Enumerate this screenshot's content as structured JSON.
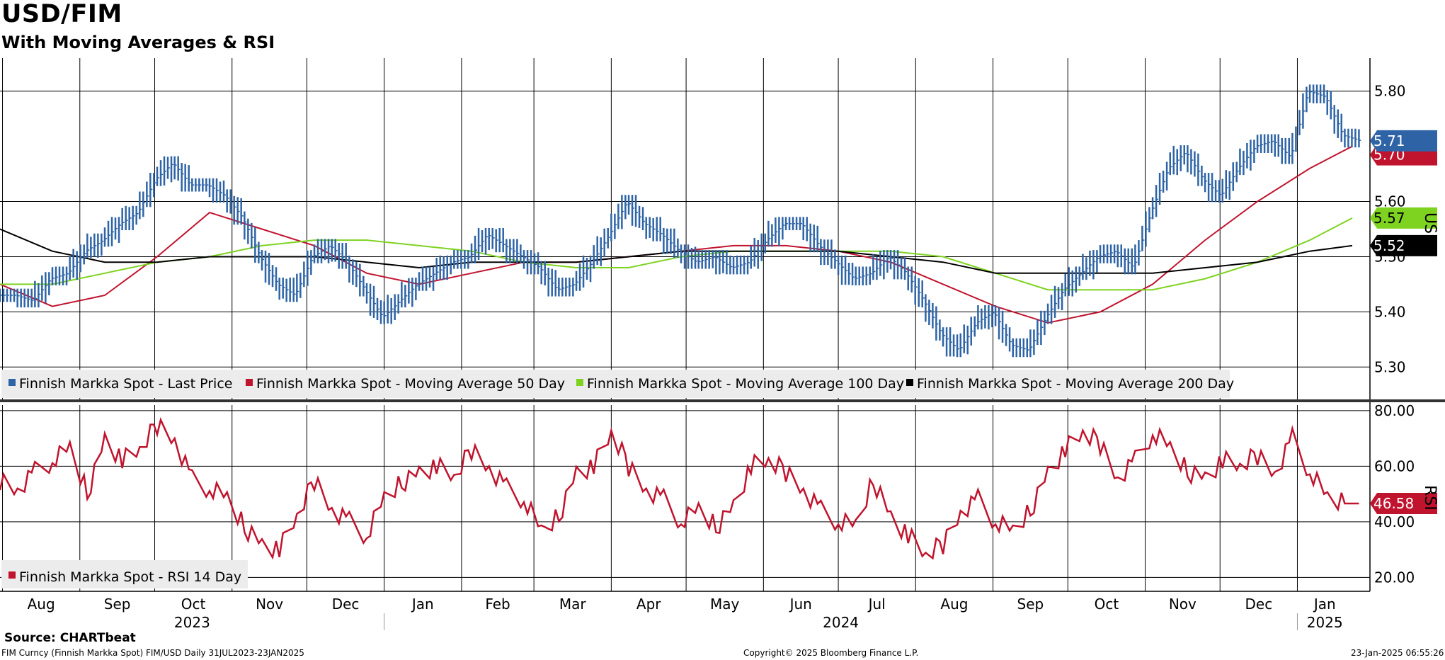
{
  "header": {
    "title": "USD/FIM",
    "subtitle": "With Moving Averages & RSI"
  },
  "footer": {
    "source": "Source: CHARTbeat",
    "meta": "FIM Curncy (Finnish Markka Spot) FIM/USD  Daily 31JUL2023-23JAN2025",
    "copyright": "Copyright© 2025 Bloomberg Finance L.P.",
    "timestamp": "23-Jan-2025 06:55:26"
  },
  "colors": {
    "price": "#2e64a6",
    "ma50": "#c0142e",
    "ma100": "#7ed321",
    "ma200": "#000000",
    "rsi": "#c0142e",
    "grid": "#000000"
  },
  "chart_data": [
    {
      "type": "line",
      "panel": "price",
      "ylabel": "USD",
      "ylim": [
        5.24,
        5.86
      ],
      "yticks": [
        "5.30",
        "5.40",
        "5.50",
        "5.60",
        "5.80"
      ],
      "grid": true,
      "legend": "bottom",
      "x_range": [
        "2023-07-31",
        "2025-01-23"
      ],
      "months": [
        "Aug",
        "Sep",
        "Oct",
        "Nov",
        "Dec",
        "Jan",
        "Feb",
        "Mar",
        "Apr",
        "May",
        "Jun",
        "Jul",
        "Aug",
        "Sep",
        "Oct",
        "Nov",
        "Dec",
        "Jan"
      ],
      "years": [
        "2023",
        "2024",
        "2025"
      ],
      "last_values": {
        "price": "5.71",
        "ma50": "5.70",
        "ma100": "5.57",
        "ma200": "5.52"
      },
      "series": [
        {
          "name": "Finnish Markka Spot - Last Price",
          "x": [
            "2023-07-31",
            "2023-08-07",
            "2023-08-14",
            "2023-08-21",
            "2023-08-28",
            "2023-09-04",
            "2023-09-11",
            "2023-09-18",
            "2023-09-25",
            "2023-10-02",
            "2023-10-09",
            "2023-10-16",
            "2023-10-23",
            "2023-10-30",
            "2023-11-06",
            "2023-11-13",
            "2023-11-20",
            "2023-11-27",
            "2023-12-04",
            "2023-12-11",
            "2023-12-18",
            "2023-12-25",
            "2024-01-01",
            "2024-01-08",
            "2024-01-15",
            "2024-01-22",
            "2024-01-29",
            "2024-02-05",
            "2024-02-12",
            "2024-02-19",
            "2024-02-26",
            "2024-03-04",
            "2024-03-11",
            "2024-03-18",
            "2024-03-25",
            "2024-04-01",
            "2024-04-08",
            "2024-04-15",
            "2024-04-22",
            "2024-04-29",
            "2024-05-06",
            "2024-05-13",
            "2024-05-20",
            "2024-05-27",
            "2024-06-03",
            "2024-06-10",
            "2024-06-17",
            "2024-06-24",
            "2024-07-01",
            "2024-07-08",
            "2024-07-15",
            "2024-07-22",
            "2024-07-29",
            "2024-08-05",
            "2024-08-12",
            "2024-08-19",
            "2024-08-26",
            "2024-09-02",
            "2024-09-09",
            "2024-09-16",
            "2024-09-23",
            "2024-09-30",
            "2024-10-07",
            "2024-10-14",
            "2024-10-21",
            "2024-10-28",
            "2024-11-04",
            "2024-11-11",
            "2024-11-18",
            "2024-11-25",
            "2024-12-02",
            "2024-12-09",
            "2024-12-16",
            "2024-12-23",
            "2024-12-30",
            "2025-01-06",
            "2025-01-13",
            "2025-01-20"
          ],
          "values": [
            5.43,
            5.42,
            5.46,
            5.47,
            5.51,
            5.53,
            5.56,
            5.58,
            5.64,
            5.67,
            5.63,
            5.63,
            5.61,
            5.57,
            5.5,
            5.45,
            5.43,
            5.5,
            5.52,
            5.49,
            5.44,
            5.39,
            5.42,
            5.45,
            5.47,
            5.49,
            5.5,
            5.54,
            5.52,
            5.5,
            5.48,
            5.44,
            5.45,
            5.49,
            5.54,
            5.6,
            5.56,
            5.54,
            5.51,
            5.49,
            5.5,
            5.48,
            5.49,
            5.53,
            5.56,
            5.56,
            5.52,
            5.49,
            5.46,
            5.47,
            5.5,
            5.47,
            5.42,
            5.36,
            5.33,
            5.38,
            5.4,
            5.34,
            5.33,
            5.39,
            5.44,
            5.47,
            5.5,
            5.51,
            5.48,
            5.58,
            5.66,
            5.69,
            5.64,
            5.61,
            5.66,
            5.7,
            5.71,
            5.68,
            5.8,
            5.79,
            5.72,
            5.71
          ]
        },
        {
          "name": "Finnish Markka Spot - Moving Average 50 Day",
          "x": [
            "2023-07-31",
            "2023-08-21",
            "2023-09-11",
            "2023-10-02",
            "2023-10-23",
            "2023-11-13",
            "2023-12-04",
            "2023-12-25",
            "2024-01-15",
            "2024-02-05",
            "2024-02-26",
            "2024-03-18",
            "2024-04-08",
            "2024-04-29",
            "2024-05-20",
            "2024-06-10",
            "2024-07-01",
            "2024-07-22",
            "2024-08-12",
            "2024-09-02",
            "2024-09-23",
            "2024-10-14",
            "2024-11-04",
            "2024-11-25",
            "2024-12-16",
            "2025-01-06",
            "2025-01-23"
          ],
          "values": [
            5.45,
            5.41,
            5.43,
            5.5,
            5.58,
            5.55,
            5.52,
            5.47,
            5.45,
            5.47,
            5.49,
            5.49,
            5.5,
            5.51,
            5.52,
            5.52,
            5.51,
            5.49,
            5.45,
            5.41,
            5.38,
            5.4,
            5.45,
            5.53,
            5.6,
            5.66,
            5.7
          ]
        },
        {
          "name": "Finnish Markka Spot - Moving Average 100 Day",
          "x": [
            "2023-07-31",
            "2023-08-21",
            "2023-09-11",
            "2023-10-02",
            "2023-10-23",
            "2023-11-13",
            "2023-12-04",
            "2023-12-25",
            "2024-01-15",
            "2024-02-05",
            "2024-02-26",
            "2024-03-18",
            "2024-04-08",
            "2024-04-29",
            "2024-05-20",
            "2024-06-10",
            "2024-07-01",
            "2024-07-22",
            "2024-08-12",
            "2024-09-02",
            "2024-09-23",
            "2024-10-14",
            "2024-11-04",
            "2024-11-25",
            "2024-12-16",
            "2025-01-06",
            "2025-01-23"
          ],
          "values": [
            5.45,
            5.45,
            5.47,
            5.49,
            5.5,
            5.52,
            5.53,
            5.53,
            5.52,
            5.51,
            5.49,
            5.48,
            5.48,
            5.5,
            5.51,
            5.51,
            5.51,
            5.51,
            5.5,
            5.47,
            5.44,
            5.44,
            5.44,
            5.46,
            5.49,
            5.53,
            5.57
          ]
        },
        {
          "name": "Finnish Markka Spot - Moving Average 200 Day",
          "x": [
            "2023-07-31",
            "2023-08-21",
            "2023-09-11",
            "2023-10-02",
            "2023-10-23",
            "2023-11-13",
            "2023-12-04",
            "2023-12-25",
            "2024-01-15",
            "2024-02-05",
            "2024-02-26",
            "2024-03-18",
            "2024-04-08",
            "2024-04-29",
            "2024-05-20",
            "2024-06-10",
            "2024-07-01",
            "2024-07-22",
            "2024-08-12",
            "2024-09-02",
            "2024-09-23",
            "2024-10-14",
            "2024-11-04",
            "2024-11-25",
            "2024-12-16",
            "2025-01-06",
            "2025-01-23"
          ],
          "values": [
            5.55,
            5.51,
            5.49,
            5.49,
            5.5,
            5.5,
            5.5,
            5.49,
            5.48,
            5.49,
            5.49,
            5.49,
            5.5,
            5.51,
            5.51,
            5.51,
            5.51,
            5.5,
            5.49,
            5.47,
            5.47,
            5.47,
            5.47,
            5.48,
            5.49,
            5.51,
            5.52
          ]
        }
      ]
    },
    {
      "type": "line",
      "panel": "rsi",
      "ylabel": "RSI",
      "ylim": [
        15,
        82
      ],
      "yticks": [
        "20.00",
        "40.00",
        "60.00",
        "80.00"
      ],
      "grid": true,
      "legend": "bottom-left",
      "last_value": "46.58",
      "series": [
        {
          "name": "Finnish Markka Spot - RSI 14 Day",
          "x": [
            "2023-07-31",
            "2023-08-07",
            "2023-08-14",
            "2023-08-21",
            "2023-08-28",
            "2023-09-04",
            "2023-09-11",
            "2023-09-18",
            "2023-09-25",
            "2023-10-02",
            "2023-10-09",
            "2023-10-16",
            "2023-10-23",
            "2023-10-30",
            "2023-11-06",
            "2023-11-13",
            "2023-11-20",
            "2023-11-27",
            "2023-12-04",
            "2023-12-11",
            "2023-12-18",
            "2023-12-25",
            "2024-01-01",
            "2024-01-08",
            "2024-01-15",
            "2024-01-22",
            "2024-01-29",
            "2024-02-05",
            "2024-02-12",
            "2024-02-19",
            "2024-02-26",
            "2024-03-04",
            "2024-03-11",
            "2024-03-18",
            "2024-03-25",
            "2024-04-01",
            "2024-04-08",
            "2024-04-15",
            "2024-04-22",
            "2024-04-29",
            "2024-05-06",
            "2024-05-13",
            "2024-05-20",
            "2024-05-27",
            "2024-06-03",
            "2024-06-10",
            "2024-06-17",
            "2024-06-24",
            "2024-07-01",
            "2024-07-08",
            "2024-07-15",
            "2024-07-22",
            "2024-07-29",
            "2024-08-05",
            "2024-08-12",
            "2024-08-19",
            "2024-08-26",
            "2024-09-02",
            "2024-09-09",
            "2024-09-16",
            "2024-09-23",
            "2024-09-30",
            "2024-10-07",
            "2024-10-14",
            "2024-10-21",
            "2024-10-28",
            "2024-11-04",
            "2024-11-11",
            "2024-11-18",
            "2024-11-25",
            "2024-12-02",
            "2024-12-09",
            "2024-12-16",
            "2024-12-23",
            "2024-12-30",
            "2025-01-06",
            "2025-01-13",
            "2025-01-20"
          ],
          "values": [
            55,
            52,
            58,
            62,
            66,
            50,
            70,
            62,
            66,
            75,
            70,
            55,
            52,
            48,
            38,
            32,
            30,
            42,
            55,
            45,
            40,
            35,
            48,
            54,
            58,
            60,
            56,
            66,
            60,
            52,
            48,
            36,
            42,
            58,
            60,
            72,
            60,
            52,
            48,
            40,
            44,
            38,
            46,
            60,
            62,
            58,
            52,
            44,
            40,
            38,
            55,
            42,
            35,
            28,
            32,
            44,
            48,
            40,
            36,
            44,
            58,
            66,
            72,
            68,
            56,
            62,
            72,
            66,
            58,
            56,
            62,
            60,
            64,
            58,
            70,
            58,
            48,
            46.58
          ]
        }
      ]
    }
  ]
}
